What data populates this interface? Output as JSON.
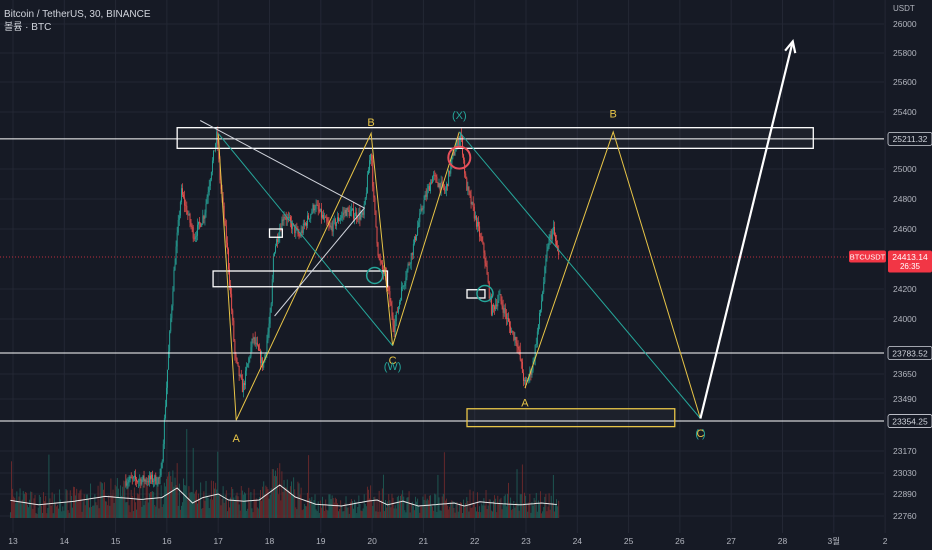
{
  "header": {
    "symbol_line": "Bitcoin / TetherUS, 30, BINANCE",
    "volume_line": "볼륨 · BTC"
  },
  "chart_data": {
    "type": "candlestick",
    "title": "Bitcoin / TetherUS, 30, BINANCE",
    "y_unit": "USDT",
    "ylim": [
      22680,
      26100
    ],
    "y_ticks": [
      26000,
      25800,
      25600,
      25400,
      25000,
      24800,
      24600,
      24200,
      24000,
      23650,
      23490,
      23170,
      23030,
      22890,
      22760
    ],
    "x_ticks": [
      "13",
      "14",
      "15",
      "16",
      "17",
      "18",
      "19",
      "20",
      "21",
      "22",
      "23",
      "24",
      "25",
      "26",
      "27",
      "28",
      "3월",
      "2"
    ],
    "price_path": [
      {
        "t": 15.2,
        "p": 22980
      },
      {
        "t": 15.9,
        "p": 22990
      },
      {
        "t": 16.15,
        "p": 24280
      },
      {
        "t": 16.3,
        "p": 24850
      },
      {
        "t": 16.55,
        "p": 24550
      },
      {
        "t": 16.75,
        "p": 24700
      },
      {
        "t": 17.0,
        "p": 25250
      },
      {
        "t": 17.05,
        "p": 24950
      },
      {
        "t": 17.2,
        "p": 24450
      },
      {
        "t": 17.35,
        "p": 23750
      },
      {
        "t": 17.5,
        "p": 23550
      },
      {
        "t": 17.7,
        "p": 23880
      },
      {
        "t": 17.9,
        "p": 23700
      },
      {
        "t": 18.05,
        "p": 24050
      },
      {
        "t": 18.1,
        "p": 24450
      },
      {
        "t": 18.3,
        "p": 24700
      },
      {
        "t": 18.6,
        "p": 24550
      },
      {
        "t": 18.9,
        "p": 24760
      },
      {
        "t": 19.2,
        "p": 24600
      },
      {
        "t": 19.5,
        "p": 24720
      },
      {
        "t": 19.85,
        "p": 24680
      },
      {
        "t": 20.0,
        "p": 25150
      },
      {
        "t": 20.05,
        "p": 24800
      },
      {
        "t": 20.15,
        "p": 24400
      },
      {
        "t": 20.3,
        "p": 24250
      },
      {
        "t": 20.45,
        "p": 23950
      },
      {
        "t": 20.6,
        "p": 24200
      },
      {
        "t": 20.8,
        "p": 24450
      },
      {
        "t": 21.0,
        "p": 24750
      },
      {
        "t": 21.2,
        "p": 24950
      },
      {
        "t": 21.45,
        "p": 24850
      },
      {
        "t": 21.6,
        "p": 25100
      },
      {
        "t": 21.75,
        "p": 25250
      },
      {
        "t": 21.85,
        "p": 24900
      },
      {
        "t": 22.05,
        "p": 24650
      },
      {
        "t": 22.2,
        "p": 24450
      },
      {
        "t": 22.35,
        "p": 24050
      },
      {
        "t": 22.5,
        "p": 24150
      },
      {
        "t": 22.7,
        "p": 23950
      },
      {
        "t": 22.85,
        "p": 23850
      },
      {
        "t": 23.0,
        "p": 23570
      },
      {
        "t": 23.15,
        "p": 23700
      },
      {
        "t": 23.3,
        "p": 24050
      },
      {
        "t": 23.45,
        "p": 24500
      },
      {
        "t": 23.55,
        "p": 24600
      },
      {
        "t": 23.65,
        "p": 24413
      }
    ],
    "volume_path": [
      {
        "t": 12.9,
        "v": 0.3
      },
      {
        "t": 13.5,
        "v": 0.22
      },
      {
        "t": 14.2,
        "v": 0.28
      },
      {
        "t": 14.8,
        "v": 0.36
      },
      {
        "t": 15.5,
        "v": 0.31
      },
      {
        "t": 15.9,
        "v": 0.34
      },
      {
        "t": 16.2,
        "v": 0.5
      },
      {
        "t": 16.5,
        "v": 0.25
      },
      {
        "t": 16.7,
        "v": 0.34
      },
      {
        "t": 17.0,
        "v": 0.4
      },
      {
        "t": 17.2,
        "v": 0.3
      },
      {
        "t": 17.5,
        "v": 0.28
      },
      {
        "t": 17.8,
        "v": 0.3
      },
      {
        "t": 18.2,
        "v": 0.55
      },
      {
        "t": 18.5,
        "v": 0.35
      },
      {
        "t": 18.9,
        "v": 0.23
      },
      {
        "t": 19.4,
        "v": 0.2
      },
      {
        "t": 19.9,
        "v": 0.28
      },
      {
        "t": 20.1,
        "v": 0.3
      },
      {
        "t": 20.3,
        "v": 0.22
      },
      {
        "t": 20.6,
        "v": 0.28
      },
      {
        "t": 20.9,
        "v": 0.2
      },
      {
        "t": 21.2,
        "v": 0.22
      },
      {
        "t": 21.6,
        "v": 0.25
      },
      {
        "t": 21.8,
        "v": 0.2
      },
      {
        "t": 22.1,
        "v": 0.27
      },
      {
        "t": 22.5,
        "v": 0.24
      },
      {
        "t": 22.9,
        "v": 0.22
      },
      {
        "t": 23.3,
        "v": 0.25
      },
      {
        "t": 23.65,
        "v": 0.22
      }
    ],
    "h_lines": [
      25211.32,
      23783.52,
      23354.25
    ],
    "price_labels": [
      {
        "name": "level-25211",
        "text": "25211.32",
        "price": 25211.32
      },
      {
        "name": "level-23783",
        "text": "23783.52",
        "price": 23783.52
      },
      {
        "name": "level-23354",
        "text": "23354.25",
        "price": 23354.25
      }
    ],
    "current": {
      "symbol": "BTCUSDT",
      "price": 24413.14,
      "price_text": "24413.14",
      "countdown": "26:35"
    },
    "boxes": [
      {
        "name": "resistance-box",
        "color": "#ffffff",
        "t1": 16.2,
        "t2": 28.6,
        "p1": 25290,
        "p2": 25145
      },
      {
        "name": "small-box-1",
        "color": "#ffffff",
        "t1": 18.0,
        "t2": 18.25,
        "p1": 24600,
        "p2": 24545
      },
      {
        "name": "small-box-2",
        "color": "#ffffff",
        "t1": 16.9,
        "t2": 20.3,
        "p1": 24320,
        "p2": 24215
      },
      {
        "name": "small-box-3",
        "color": "#ffffff",
        "t1": 21.85,
        "t2": 22.2,
        "p1": 24195,
        "p2": 24140
      },
      {
        "name": "target-box",
        "color": "#e8c547",
        "t1": 21.85,
        "t2": 25.9,
        "p1": 23430,
        "p2": 23320
      }
    ],
    "wave_lines": [
      {
        "name": "wave-yellow-abc",
        "color": "#e8c547",
        "points": [
          [
            17.0,
            25250
          ],
          [
            17.35,
            23360
          ],
          [
            19.98,
            25250
          ],
          [
            20.4,
            23830
          ],
          [
            21.7,
            25260
          ]
        ]
      },
      {
        "name": "wave-yellow-projection",
        "color": "#e8c547",
        "points": [
          [
            22.98,
            23560
          ],
          [
            24.7,
            25260
          ],
          [
            26.4,
            23370
          ]
        ]
      },
      {
        "name": "wave-green-1",
        "color": "#26a69a",
        "points": [
          [
            17.0,
            25250
          ],
          [
            20.4,
            23830
          ]
        ]
      },
      {
        "name": "wave-green-2",
        "color": "#26a69a",
        "points": [
          [
            21.7,
            25260
          ],
          [
            26.4,
            23370
          ]
        ]
      },
      {
        "name": "channel-line",
        "color": "#d1d4dc",
        "points": [
          [
            16.65,
            25340
          ],
          [
            19.85,
            24740
          ],
          [
            18.1,
            24020
          ]
        ]
      },
      {
        "name": "target-arrow",
        "color": "#ffffff",
        "points": [
          [
            26.4,
            23370
          ],
          [
            28.2,
            25880
          ]
        ]
      }
    ],
    "circles": [
      {
        "name": "red-circle",
        "color": "#e8505b",
        "t": 21.7,
        "p": 25080
      },
      {
        "name": "green-circle-1",
        "color": "#26a69a",
        "t": 20.05,
        "p": 24290
      },
      {
        "name": "green-circle-2",
        "color": "#26a69a",
        "t": 22.2,
        "p": 24170
      }
    ],
    "labels": [
      {
        "name": "wave-label-a1",
        "text": "A",
        "color": "#e8c547",
        "t": 17.35,
        "p": 23250
      },
      {
        "name": "wave-label-b1",
        "text": "B",
        "color": "#e8c547",
        "t": 19.98,
        "p": 25330
      },
      {
        "name": "wave-label-c1",
        "text": "C",
        "color": "#e8c547",
        "t": 20.4,
        "p": 23740
      },
      {
        "name": "wave-label-w",
        "text": "(W)",
        "color": "#26a69a",
        "t": 20.4,
        "p": 23700
      },
      {
        "name": "wave-label-x",
        "text": "(X)",
        "color": "#26a69a",
        "t": 21.7,
        "p": 25380
      },
      {
        "name": "wave-label-a2",
        "text": "A",
        "color": "#e8c547",
        "t": 22.98,
        "p": 23470
      },
      {
        "name": "wave-label-b2",
        "text": "B",
        "color": "#e8c547",
        "t": 24.7,
        "p": 25390
      },
      {
        "name": "wave-label-c2",
        "text": "C",
        "color": "#e8c547",
        "t": 26.4,
        "p": 23280
      },
      {
        "name": "wave-label-y",
        "text": "( )",
        "color": "#26a69a",
        "t": 26.4,
        "p": 23280
      }
    ]
  },
  "colors": {
    "background": "#161a25",
    "grid": "#232734",
    "up": "#26a69a",
    "down": "#ef5350",
    "text": "#b2b5be",
    "price_tag": "#f23645"
  }
}
